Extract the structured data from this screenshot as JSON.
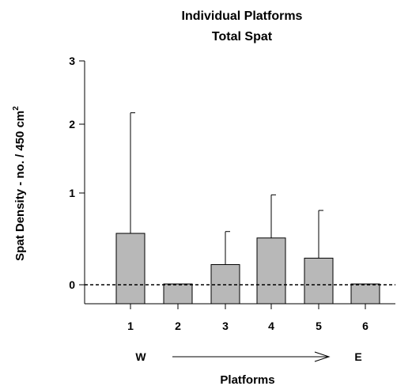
{
  "chart_data": {
    "type": "bar",
    "title": "Individual Platforms",
    "subtitle": "Total Spat",
    "xlabel": "Platforms",
    "ylabel": "Spat Density - no. / 450 cm",
    "ylabel_superscript": "2",
    "categories": [
      "1",
      "2",
      "3",
      "4",
      "5",
      "6"
    ],
    "values": [
      0.56,
      0.0,
      0.22,
      0.51,
      0.29,
      0.0
    ],
    "error_upper": [
      2.18,
      0.0,
      0.58,
      0.98,
      0.81,
      0.0
    ],
    "ytick_labels": [
      "0",
      "1",
      "2",
      "3"
    ],
    "ylim": [
      0,
      3
    ],
    "y_scale": "log(x+1)",
    "reference_line": 0,
    "direction": {
      "start": "W",
      "end": "E"
    },
    "bar_color": "#b8b8b8",
    "grid": false,
    "legend": "none"
  }
}
